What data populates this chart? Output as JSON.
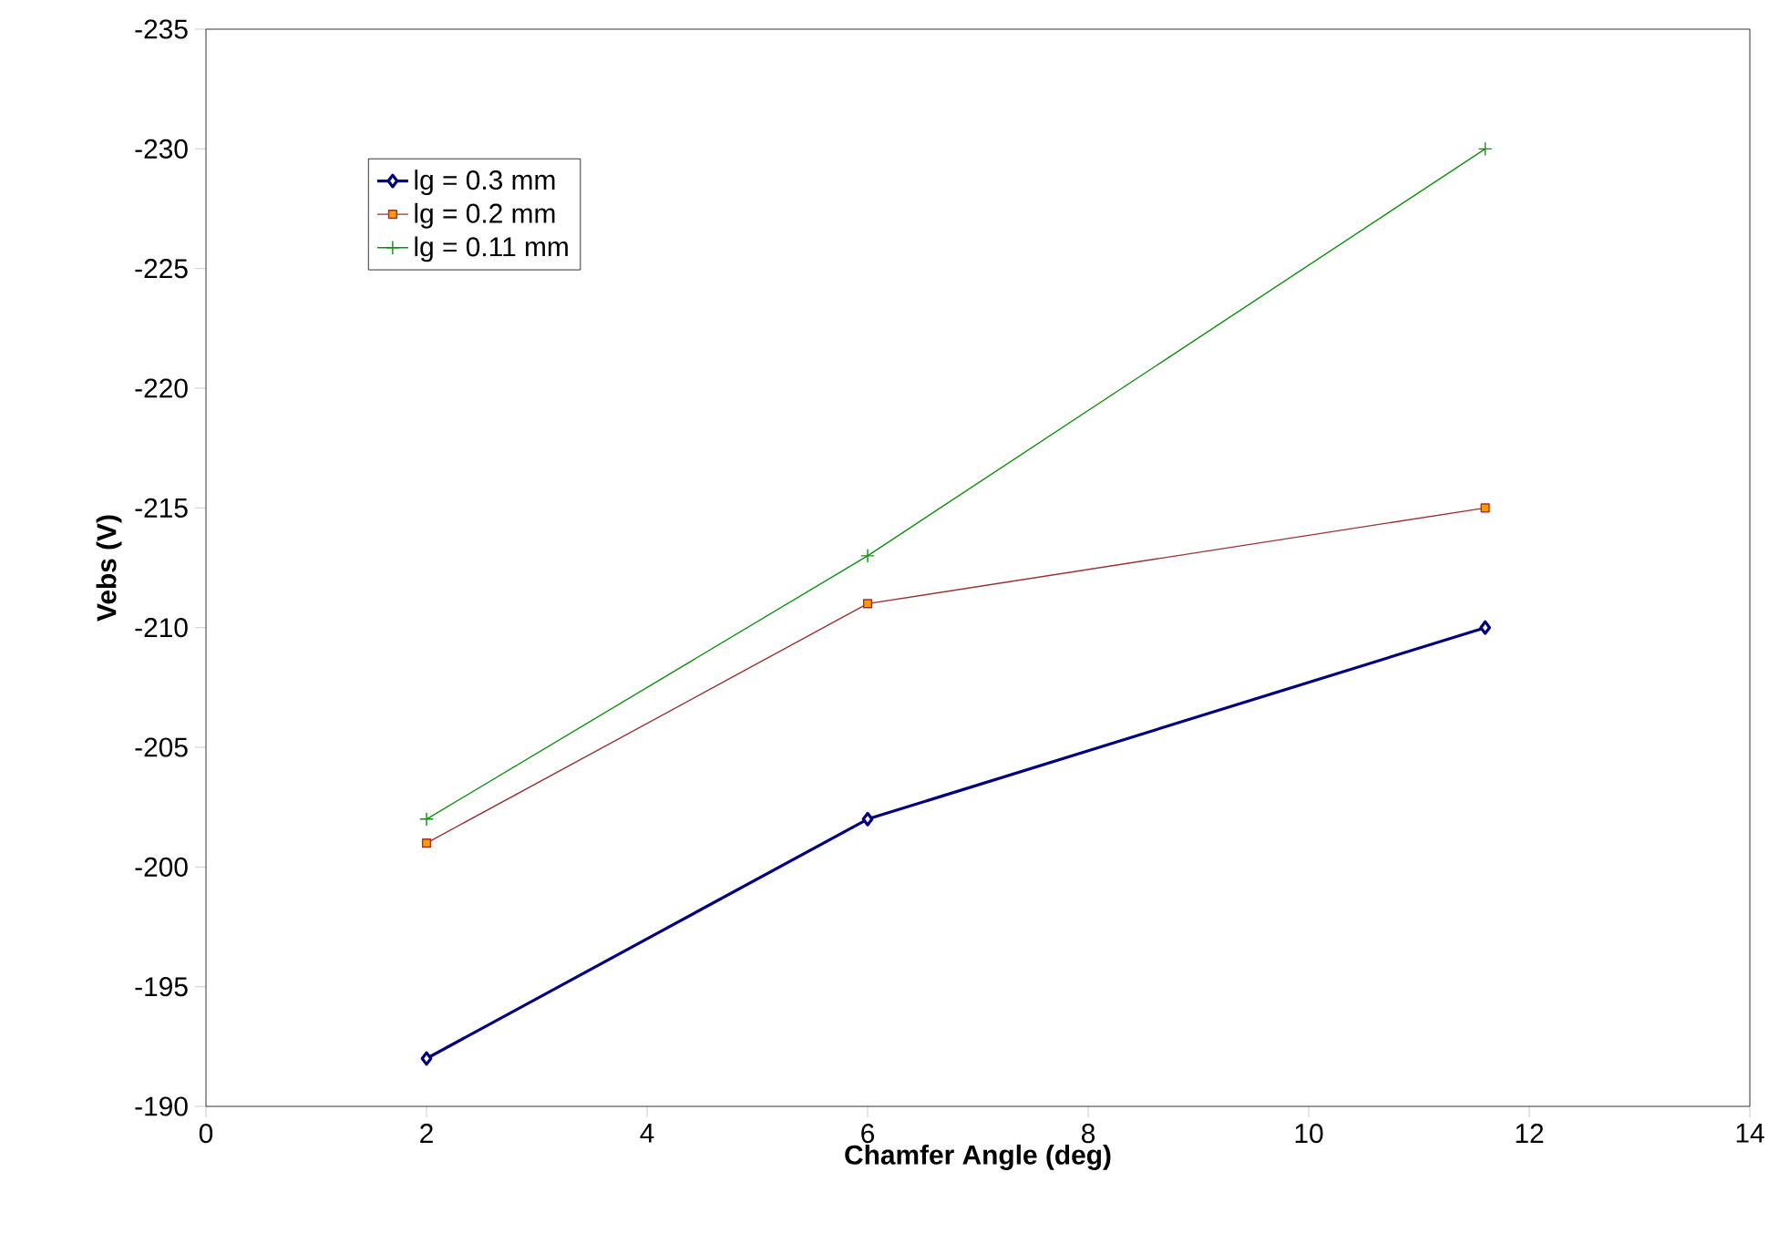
{
  "chart_data": {
    "type": "line",
    "xlabel": "Chamfer Angle (deg)",
    "ylabel": "Vebs (V)",
    "x": [
      2,
      6,
      11.6
    ],
    "series": [
      {
        "name": "lg = 0.3 mm",
        "color": "#000080",
        "values": [
          -192,
          -202,
          -210
        ],
        "marker": "diamond"
      },
      {
        "name": "lg = 0.2 mm",
        "color": "#993333",
        "values": [
          -201,
          -211,
          -215
        ],
        "marker": "square"
      },
      {
        "name": "lg = 0.11 mm",
        "color": "#109010",
        "values": [
          -202,
          -213,
          -230
        ],
        "marker": "cross"
      }
    ],
    "xlim": [
      0,
      14
    ],
    "xticks": [
      0,
      2,
      4,
      6,
      8,
      10,
      12,
      14
    ],
    "ylim": [
      -190,
      -235
    ],
    "yticks": [
      -190,
      -195,
      -200,
      -205,
      -210,
      -215,
      -220,
      -225,
      -230,
      -235
    ],
    "grid": false,
    "legend": "top left",
    "line_style": "solid"
  }
}
